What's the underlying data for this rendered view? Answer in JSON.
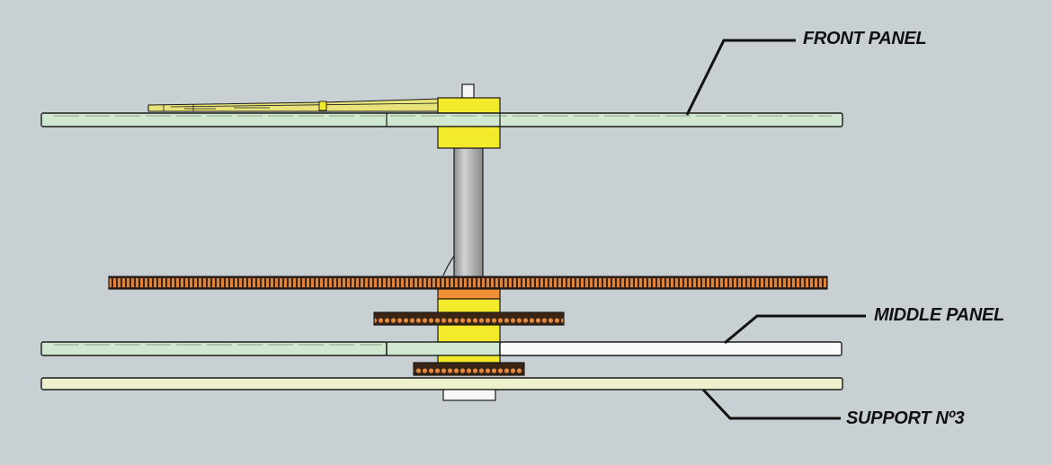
{
  "labels": {
    "front_panel": "FRONT PANEL",
    "middle_panel": "MIDDLE PANEL",
    "support": "SUPPORT Nº3"
  },
  "colors": {
    "background": "#c9d0d3",
    "panel_green": "#cfe8cf",
    "panel_white": "#fafafa",
    "support_panel": "#eef2cc",
    "bushing_yellow": "#f2ea2a",
    "gear_orange": "#d67a2e",
    "gear_dark": "#3a2414",
    "shaft_gray": "#a9a9a9",
    "outline": "#1a1a1a"
  },
  "icons": {
    "leader_line": "callout-leader-line",
    "gear": "toothed-gear-side-view"
  }
}
